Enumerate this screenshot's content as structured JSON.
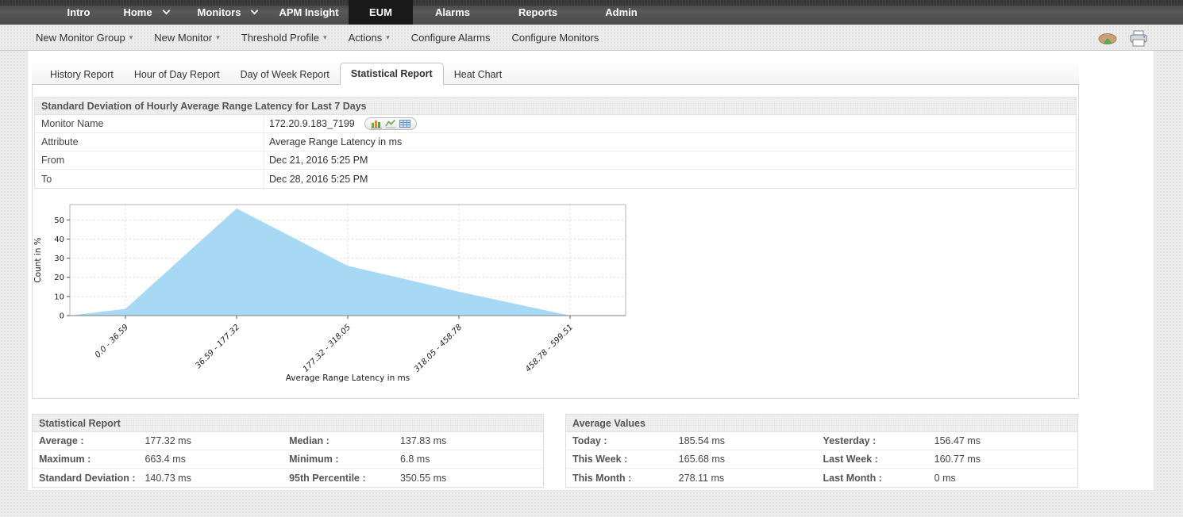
{
  "nav": {
    "items": [
      {
        "label": "Intro",
        "active": false,
        "caret": false
      },
      {
        "label": "Home",
        "active": false,
        "caret": true
      },
      {
        "label": "Monitors",
        "active": false,
        "caret": true
      },
      {
        "label": "APM Insight",
        "active": false,
        "caret": false
      },
      {
        "label": "EUM",
        "active": true,
        "caret": false
      },
      {
        "label": "Alarms",
        "active": false,
        "caret": false
      },
      {
        "label": "Reports",
        "active": false,
        "caret": false
      },
      {
        "label": "Admin",
        "active": false,
        "caret": false
      }
    ]
  },
  "toolbar": {
    "items": [
      {
        "label": "New Monitor Group",
        "caret": true
      },
      {
        "label": "New Monitor",
        "caret": true
      },
      {
        "label": "Threshold Profile",
        "caret": true
      },
      {
        "label": "Actions",
        "caret": true
      },
      {
        "label": "Configure Alarms",
        "caret": false
      },
      {
        "label": "Configure Monitors",
        "caret": false
      }
    ],
    "icons": [
      "pie-chart-icon",
      "printer-icon"
    ]
  },
  "tabs": [
    {
      "label": "History Report",
      "active": false
    },
    {
      "label": "Hour of Day Report",
      "active": false
    },
    {
      "label": "Day of Week Report",
      "active": false
    },
    {
      "label": "Statistical Report",
      "active": true
    },
    {
      "label": "Heat Chart",
      "active": false
    }
  ],
  "info_table": {
    "title": "Standard Deviation of Hourly Average Range Latency for Last 7 Days",
    "monitor_icons": [
      "bar-chart-icon",
      "line-chart-icon",
      "grid-icon"
    ],
    "rows": [
      {
        "label": "Monitor Name",
        "value": "172.20.9.183_7199",
        "icons": true
      },
      {
        "label": "Attribute",
        "value": "Average Range Latency in ms",
        "icons": false
      },
      {
        "label": "From",
        "value": "Dec 21, 2016 5:25 PM",
        "icons": false
      },
      {
        "label": "To",
        "value": "Dec 28, 2016 5:25 PM",
        "icons": false
      }
    ]
  },
  "chart_data": {
    "type": "area",
    "categories": [
      "0.0 - 36.59",
      "36.59 - 177.32",
      "177.32 - 318.05",
      "318.05 - 458.78",
      "458.78 - 599.51"
    ],
    "values": [
      3.5,
      56,
      26,
      12.5,
      0
    ],
    "xlabel": "Average Range Latency in ms",
    "ylabel": "Count in %",
    "ylim": [
      0,
      58
    ],
    "yticks": [
      0,
      10,
      20,
      30,
      40,
      50
    ],
    "grid": true,
    "legend_position": "none",
    "area_color": "#a7d9f5"
  },
  "statistical_report": {
    "title": "Statistical Report",
    "rows": [
      [
        {
          "label": "Average :",
          "value": "177.32 ms"
        },
        {
          "label": "Median :",
          "value": "137.83 ms"
        }
      ],
      [
        {
          "label": "Maximum :",
          "value": "663.4 ms"
        },
        {
          "label": "Minimum :",
          "value": "6.8 ms"
        }
      ],
      [
        {
          "label": "Standard Deviation :",
          "value": "140.73 ms"
        },
        {
          "label": "95th Percentile :",
          "value": "350.55 ms"
        }
      ]
    ]
  },
  "average_values": {
    "title": "Average Values",
    "rows": [
      [
        {
          "label": "Today :",
          "value": "185.54 ms"
        },
        {
          "label": "Yesterday :",
          "value": "156.47 ms"
        }
      ],
      [
        {
          "label": "This Week :",
          "value": "165.68 ms"
        },
        {
          "label": "Last Week :",
          "value": "160.77 ms"
        }
      ],
      [
        {
          "label": "This Month :",
          "value": "278.11 ms"
        },
        {
          "label": "Last Month :",
          "value": "0 ms"
        }
      ]
    ]
  }
}
